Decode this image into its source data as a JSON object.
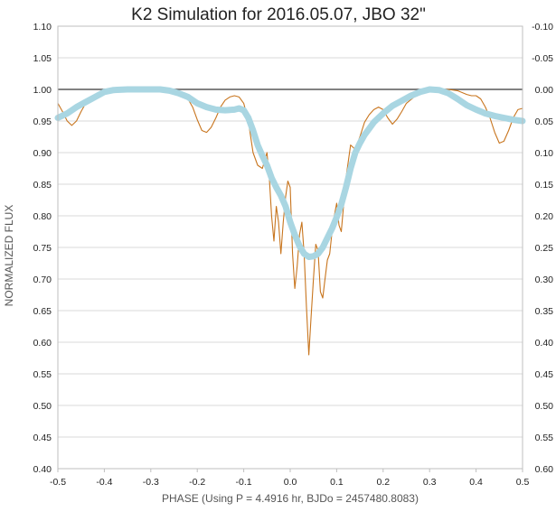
{
  "chart_data": {
    "type": "line",
    "title": "K2 Simulation for 2016.05.07, JBO 32\"",
    "xlabel": "PHASE (Using P = 4.4916 hr, BJDo = 2457480.8083)",
    "ylabel": "NORMALIZED FLUX",
    "xlim": [
      -0.5,
      0.5
    ],
    "ylim": [
      0.4,
      1.1
    ],
    "y2lim": [
      -0.1,
      0.6
    ],
    "y2_reversed": true,
    "grid": "horizontal",
    "reference_line": 1.0,
    "x_ticks": [
      "-0.5",
      "-0.4",
      "-0.3",
      "-0.2",
      "-0.1",
      "0.0",
      "0.1",
      "0.2",
      "0.3",
      "0.4",
      "0.5"
    ],
    "y_ticks": [
      "0.40",
      "0.45",
      "0.50",
      "0.55",
      "0.60",
      "0.65",
      "0.70",
      "0.75",
      "0.80",
      "0.85",
      "0.90",
      "0.95",
      "1.00",
      "1.05",
      "1.10"
    ],
    "y2_ticks": [
      "0.60",
      "0.55",
      "0.50",
      "0.45",
      "0.40",
      "0.35",
      "0.30",
      "0.25",
      "0.20",
      "0.15",
      "0.10",
      "0.05",
      "0.00",
      "-0.05",
      "-0.10"
    ],
    "series": [
      {
        "color": "#c8751e",
        "style": "thin-line",
        "x": [
          -0.5,
          -0.49,
          -0.48,
          -0.47,
          -0.46,
          -0.45,
          -0.44,
          -0.42,
          -0.4,
          -0.38,
          -0.35,
          -0.3,
          -0.26,
          -0.24,
          -0.22,
          -0.21,
          -0.2,
          -0.19,
          -0.18,
          -0.17,
          -0.16,
          -0.15,
          -0.14,
          -0.13,
          -0.12,
          -0.11,
          -0.1,
          -0.09,
          -0.08,
          -0.07,
          -0.06,
          -0.05,
          -0.045,
          -0.04,
          -0.035,
          -0.03,
          -0.025,
          -0.02,
          -0.015,
          -0.01,
          -0.005,
          0.0,
          0.005,
          0.01,
          0.015,
          0.02,
          0.025,
          0.03,
          0.035,
          0.04,
          0.045,
          0.05,
          0.055,
          0.06,
          0.065,
          0.07,
          0.075,
          0.08,
          0.085,
          0.09,
          0.095,
          0.1,
          0.105,
          0.11,
          0.12,
          0.13,
          0.14,
          0.15,
          0.16,
          0.17,
          0.18,
          0.19,
          0.2,
          0.21,
          0.22,
          0.23,
          0.24,
          0.25,
          0.27,
          0.3,
          0.34,
          0.36,
          0.38,
          0.39,
          0.4,
          0.41,
          0.42,
          0.43,
          0.44,
          0.45,
          0.46,
          0.47,
          0.48,
          0.49,
          0.5
        ],
        "y": [
          0.978,
          0.965,
          0.95,
          0.943,
          0.95,
          0.965,
          0.978,
          0.99,
          0.998,
          1.0,
          1.0,
          1.0,
          0.998,
          0.995,
          0.985,
          0.972,
          0.952,
          0.935,
          0.932,
          0.94,
          0.955,
          0.972,
          0.983,
          0.988,
          0.99,
          0.988,
          0.978,
          0.95,
          0.9,
          0.88,
          0.875,
          0.9,
          0.86,
          0.8,
          0.76,
          0.815,
          0.79,
          0.74,
          0.79,
          0.83,
          0.855,
          0.845,
          0.74,
          0.685,
          0.72,
          0.77,
          0.79,
          0.74,
          0.655,
          0.58,
          0.64,
          0.7,
          0.755,
          0.745,
          0.68,
          0.67,
          0.7,
          0.73,
          0.74,
          0.775,
          0.8,
          0.82,
          0.785,
          0.775,
          0.86,
          0.912,
          0.905,
          0.925,
          0.948,
          0.96,
          0.968,
          0.972,
          0.968,
          0.955,
          0.945,
          0.953,
          0.965,
          0.978,
          0.99,
          0.998,
          1.0,
          0.998,
          0.992,
          0.99,
          0.99,
          0.985,
          0.972,
          0.955,
          0.932,
          0.915,
          0.918,
          0.935,
          0.955,
          0.968,
          0.97
        ]
      },
      {
        "color": "#a9d6e2",
        "style": "thick-line",
        "x": [
          -0.5,
          -0.48,
          -0.46,
          -0.44,
          -0.42,
          -0.4,
          -0.38,
          -0.35,
          -0.3,
          -0.28,
          -0.26,
          -0.24,
          -0.22,
          -0.2,
          -0.18,
          -0.16,
          -0.14,
          -0.12,
          -0.11,
          -0.1,
          -0.09,
          -0.08,
          -0.07,
          -0.06,
          -0.05,
          -0.04,
          -0.03,
          -0.02,
          -0.01,
          0.0,
          0.01,
          0.02,
          0.03,
          0.04,
          0.05,
          0.06,
          0.07,
          0.08,
          0.09,
          0.1,
          0.11,
          0.12,
          0.13,
          0.14,
          0.15,
          0.16,
          0.17,
          0.18,
          0.2,
          0.22,
          0.24,
          0.26,
          0.28,
          0.3,
          0.32,
          0.34,
          0.36,
          0.38,
          0.4,
          0.42,
          0.44,
          0.46,
          0.48,
          0.5
        ],
        "y": [
          0.955,
          0.962,
          0.972,
          0.98,
          0.988,
          0.996,
          0.999,
          1.0,
          1.0,
          1.0,
          0.998,
          0.994,
          0.988,
          0.978,
          0.972,
          0.968,
          0.967,
          0.968,
          0.97,
          0.967,
          0.955,
          0.935,
          0.912,
          0.895,
          0.88,
          0.86,
          0.845,
          0.832,
          0.815,
          0.79,
          0.77,
          0.752,
          0.74,
          0.735,
          0.736,
          0.74,
          0.75,
          0.765,
          0.78,
          0.798,
          0.818,
          0.845,
          0.875,
          0.9,
          0.915,
          0.928,
          0.938,
          0.948,
          0.962,
          0.974,
          0.982,
          0.99,
          0.996,
          1.0,
          0.999,
          0.994,
          0.985,
          0.975,
          0.968,
          0.962,
          0.958,
          0.955,
          0.952,
          0.95
        ]
      }
    ]
  }
}
